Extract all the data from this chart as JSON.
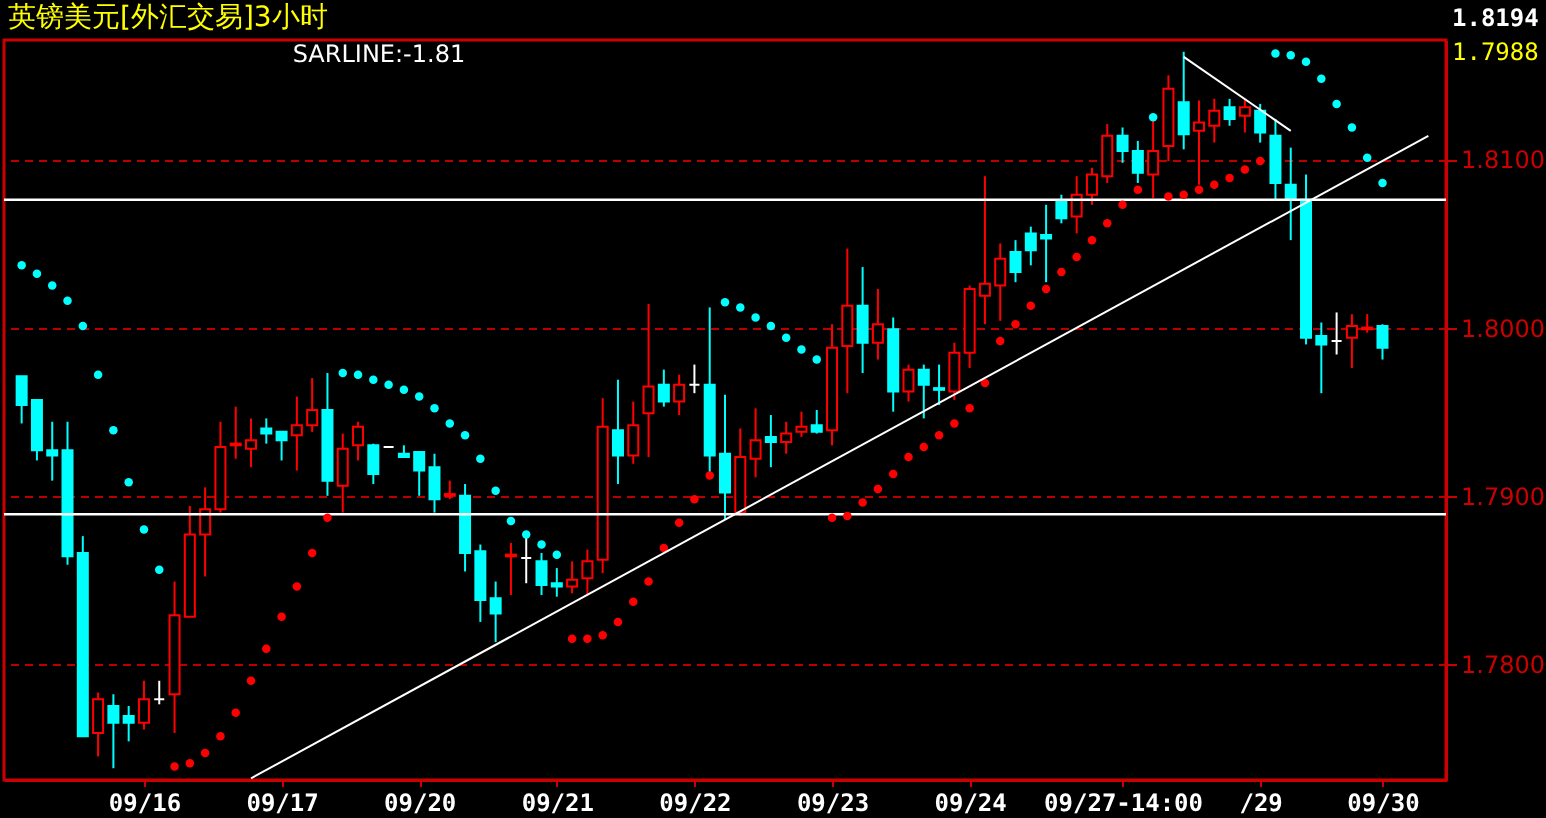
{
  "chart_data": {
    "type": "candlestick",
    "title": "英镑美元[外汇交易]3小时",
    "categories": [
      null,
      null,
      null,
      null,
      null,
      null,
      null,
      null,
      "09/16",
      null,
      null,
      null,
      null,
      null,
      null,
      null,
      null,
      "09/17",
      null,
      null,
      null,
      null,
      null,
      null,
      null,
      null,
      "09/20",
      null,
      null,
      null,
      null,
      null,
      null,
      null,
      null,
      "09/21",
      null,
      null,
      null,
      null,
      null,
      null,
      null,
      null,
      "09/22",
      null,
      null,
      null,
      null,
      null,
      null,
      null,
      null,
      "09/23",
      null,
      null,
      null,
      null,
      null,
      null,
      null,
      null,
      "09/24",
      null,
      null,
      null,
      null,
      null,
      null,
      null,
      null,
      null,
      "09/27-14:00",
      null,
      null,
      null,
      null,
      null,
      null,
      null,
      null,
      "/29",
      null,
      null,
      null,
      null,
      null,
      null,
      null,
      "09/30",
      null,
      null,
      null
    ],
    "ohlc": [
      [
        1.7971,
        1.7971,
        1.7943,
        1.7954
      ],
      [
        1.7957,
        1.7957,
        1.7921,
        1.7927
      ],
      [
        1.7927,
        1.7944,
        1.7909,
        1.7924
      ],
      [
        1.7927,
        1.7944,
        1.7859,
        1.7864
      ],
      [
        1.7866,
        1.7876,
        1.7757,
        1.7757
      ],
      [
        1.7759,
        1.7783,
        1.7745,
        1.7779
      ],
      [
        1.7775,
        1.7782,
        1.7738,
        1.7765
      ],
      [
        1.7769,
        1.7775,
        1.7754,
        1.7765
      ],
      [
        1.7765,
        1.779,
        1.7761,
        1.7779
      ],
      [
        1.7779,
        1.779,
        1.7776,
        1.7779
      ],
      [
        1.7782,
        1.7849,
        1.7759,
        1.7829
      ],
      [
        1.7828,
        1.7894,
        1.7828,
        1.7877
      ],
      [
        1.7877,
        1.7905,
        1.7852,
        1.7892
      ],
      [
        1.7892,
        1.7944,
        1.789,
        1.7929
      ],
      [
        1.793,
        1.7953,
        1.7922,
        1.7931
      ],
      [
        1.7928,
        1.7946,
        1.7917,
        1.7933
      ],
      [
        1.794,
        1.7946,
        1.7931,
        1.7937
      ],
      [
        1.7938,
        1.7938,
        1.7921,
        1.7933
      ],
      [
        1.7936,
        1.7959,
        1.7915,
        1.7942
      ],
      [
        1.7942,
        1.797,
        1.7938,
        1.7951
      ],
      [
        1.7951,
        1.7973,
        1.79,
        1.7909
      ],
      [
        1.7906,
        1.7937,
        1.789,
        1.7928
      ],
      [
        1.793,
        1.7944,
        1.7921,
        1.7941
      ],
      [
        1.793,
        1.7931,
        1.7907,
        1.7913
      ],
      [
        1.7929,
        1.7929,
        1.7929,
        1.7929
      ],
      [
        1.7925,
        1.793,
        1.7923,
        1.7923
      ],
      [
        1.7926,
        1.7926,
        1.79,
        1.7915
      ],
      [
        1.7917,
        1.7925,
        1.789,
        1.7898
      ],
      [
        1.79,
        1.7909,
        1.7898,
        1.7901
      ],
      [
        1.79,
        1.7907,
        1.7855,
        1.7866
      ],
      [
        1.7867,
        1.7871,
        1.7825,
        1.7838
      ],
      [
        1.7839,
        1.7849,
        1.7813,
        1.783
      ],
      [
        1.7864,
        1.7872,
        1.7841,
        1.7865
      ],
      [
        1.7863,
        1.7878,
        1.7848,
        1.7863
      ],
      [
        1.7861,
        1.7866,
        1.7841,
        1.7847
      ],
      [
        1.7848,
        1.7857,
        1.784,
        1.7846
      ],
      [
        1.7846,
        1.7861,
        1.7842,
        1.785
      ],
      [
        1.7851,
        1.7868,
        1.7841,
        1.7861
      ],
      [
        1.7862,
        1.7958,
        1.7854,
        1.7941
      ],
      [
        1.7939,
        1.7969,
        1.7907,
        1.7924
      ],
      [
        1.7924,
        1.7956,
        1.7919,
        1.7942
      ],
      [
        1.7949,
        1.8014,
        1.7923,
        1.7965
      ],
      [
        1.7966,
        1.7975,
        1.7953,
        1.7956
      ],
      [
        1.7956,
        1.7972,
        1.7948,
        1.7966
      ],
      [
        1.7966,
        1.7978,
        1.7961,
        1.7966
      ],
      [
        1.7966,
        1.8012,
        1.7913,
        1.7924
      ],
      [
        1.7925,
        1.796,
        1.7886,
        1.7902
      ],
      [
        1.789,
        1.794,
        1.7888,
        1.7923
      ],
      [
        1.7922,
        1.7952,
        1.7911,
        1.7933
      ],
      [
        1.7935,
        1.7948,
        1.7917,
        1.7932
      ],
      [
        1.7932,
        1.7944,
        1.7925,
        1.7937
      ],
      [
        1.7938,
        1.795,
        1.7935,
        1.7941
      ],
      [
        1.7942,
        1.7951,
        1.7937,
        1.7938
      ],
      [
        1.7939,
        1.8002,
        1.793,
        1.7988
      ],
      [
        1.7989,
        1.8047,
        1.7961,
        1.8013
      ],
      [
        1.8013,
        1.8036,
        1.7973,
        1.7991
      ],
      [
        1.7991,
        1.8023,
        1.7981,
        1.8002
      ],
      [
        1.7999,
        1.8006,
        1.795,
        1.7962
      ],
      [
        1.7962,
        1.7978,
        1.7956,
        1.7975
      ],
      [
        1.7975,
        1.7978,
        1.7946,
        1.7966
      ],
      [
        1.7964,
        1.7978,
        1.7954,
        1.7963
      ],
      [
        1.7962,
        1.7991,
        1.7957,
        1.7985
      ],
      [
        1.7985,
        1.8025,
        1.7976,
        1.8023
      ],
      [
        1.8019,
        1.809,
        1.8002,
        1.8026
      ],
      [
        1.8025,
        1.805,
        1.8004,
        1.8041
      ],
      [
        1.8045,
        1.8052,
        1.8027,
        1.8033
      ],
      [
        1.8056,
        1.806,
        1.8037,
        1.8046
      ],
      [
        1.8055,
        1.8073,
        1.8027,
        1.8053
      ],
      [
        1.8075,
        1.8079,
        1.8062,
        1.8065
      ],
      [
        1.8066,
        1.809,
        1.8056,
        1.8079
      ],
      [
        1.8079,
        1.8095,
        1.8073,
        1.8091
      ],
      [
        1.809,
        1.8121,
        1.8086,
        1.8114
      ],
      [
        1.8114,
        1.8119,
        1.8098,
        1.8105
      ],
      [
        1.8105,
        1.8111,
        1.8086,
        1.8092
      ],
      [
        1.8091,
        1.8126,
        1.8077,
        1.8105
      ],
      [
        1.8108,
        1.815,
        1.8099,
        1.8142
      ],
      [
        1.8134,
        1.8164,
        1.8106,
        1.8115
      ],
      [
        1.8117,
        1.8135,
        1.8085,
        1.8122
      ],
      [
        1.812,
        1.8136,
        1.811,
        1.8129
      ],
      [
        1.8131,
        1.8136,
        1.812,
        1.8124
      ],
      [
        1.8126,
        1.8136,
        1.8116,
        1.8131
      ],
      [
        1.8129,
        1.8133,
        1.811,
        1.8116
      ],
      [
        1.8114,
        1.8124,
        1.8076,
        1.8086
      ],
      [
        1.8085,
        1.8107,
        1.8052,
        1.8076
      ],
      [
        1.8076,
        1.8091,
        1.799,
        1.7994
      ],
      [
        1.7995,
        1.8003,
        1.7961,
        1.799
      ],
      [
        1.7992,
        1.8009,
        1.7984,
        1.7992
      ],
      [
        1.7994,
        1.8008,
        1.7976,
        1.8001
      ],
      [
        1.7999,
        1.8008,
        1.7997,
        1.8
      ],
      [
        1.8001,
        1.8002,
        1.7981,
        1.7988
      ],
      null,
      null,
      null
    ],
    "colors": [
      "#00ffff",
      "#00ffff",
      "#00ffff",
      "#00ffff",
      "#00ffff",
      "#ff0000",
      "#00ffff",
      "#00ffff",
      "#ff0000",
      "#ffffff",
      "#ff0000",
      "#ff0000",
      "#ff0000",
      "#ff0000",
      "#ff0000",
      "#ff0000",
      "#00ffff",
      "#00ffff",
      "#ff0000",
      "#ff0000",
      "#00ffff",
      "#ff0000",
      "#ff0000",
      "#00ffff",
      "#ffffff",
      "#00ffff",
      "#00ffff",
      "#00ffff",
      "#ff0000",
      "#00ffff",
      "#00ffff",
      "#00ffff",
      "#ff0000",
      "#ffffff",
      "#00ffff",
      "#00ffff",
      "#ff0000",
      "#ff0000",
      "#ff0000",
      "#00ffff",
      "#ff0000",
      "#ff0000",
      "#00ffff",
      "#ff0000",
      "#ffffff",
      "#00ffff",
      "#00ffff",
      "#ff0000",
      "#ff0000",
      "#00ffff",
      "#ff0000",
      "#ff0000",
      "#00ffff",
      "#ff0000",
      "#ff0000",
      "#00ffff",
      "#ff0000",
      "#00ffff",
      "#ff0000",
      "#00ffff",
      "#00ffff",
      "#ff0000",
      "#ff0000",
      "#ff0000",
      "#ff0000",
      "#00ffff",
      "#00ffff",
      "#00ffff",
      "#00ffff",
      "#ff0000",
      "#ff0000",
      "#ff0000",
      "#00ffff",
      "#00ffff",
      "#ff0000",
      "#ff0000",
      "#00ffff",
      "#ff0000",
      "#ff0000",
      "#00ffff",
      "#ff0000",
      "#00ffff",
      "#00ffff",
      "#00ffff",
      "#00ffff",
      "#00ffff",
      "#ffffff",
      "#ff0000",
      "#ff0000",
      "#00ffff",
      null,
      null,
      null
    ],
    "series": [
      {
        "type": "scatter",
        "color": "#00ffff",
        "values": [
          1.8037,
          1.8032,
          1.8025,
          1.8016,
          1.8001,
          1.7972,
          1.7939,
          1.7908,
          1.788,
          1.7856,
          null,
          null,
          null,
          null,
          null,
          null,
          null,
          null,
          null,
          null,
          null,
          1.7973,
          1.7972,
          1.7969,
          1.7966,
          1.7963,
          1.7959,
          1.7952,
          1.7943,
          1.7936,
          1.7922,
          1.7903,
          1.7885,
          1.7877,
          1.7871,
          1.7865,
          null,
          null,
          null,
          null,
          null,
          null,
          null,
          null,
          null,
          null,
          1.8015,
          1.8012,
          1.8006,
          1.8001,
          1.7994,
          1.7987,
          1.7981,
          null,
          null,
          null,
          null,
          null,
          null,
          null,
          null,
          null,
          null,
          null,
          null,
          null,
          null,
          null,
          null,
          null,
          null,
          null,
          null,
          null,
          1.8125,
          null,
          null,
          null,
          null,
          null,
          null,
          null,
          1.8163,
          1.8162,
          1.8158,
          1.8148,
          1.8133,
          1.8119,
          1.8101,
          1.8086,
          null,
          null,
          null
        ]
      },
      {
        "type": "scatter",
        "color": "#ff0000",
        "values": [
          null,
          null,
          null,
          null,
          null,
          null,
          null,
          null,
          null,
          null,
          1.7739,
          1.7741,
          1.7747,
          1.7757,
          1.7771,
          1.779,
          1.7809,
          1.7828,
          1.7846,
          1.7866,
          1.7887,
          null,
          null,
          null,
          null,
          null,
          null,
          null,
          null,
          null,
          null,
          null,
          null,
          null,
          null,
          null,
          1.7815,
          1.7815,
          1.7817,
          1.7825,
          1.7837,
          1.7849,
          1.7869,
          1.7884,
          1.7898,
          1.7912,
          null,
          null,
          null,
          null,
          null,
          null,
          null,
          1.7887,
          1.7888,
          1.7896,
          1.7904,
          1.7913,
          1.7923,
          1.7929,
          1.7936,
          1.7943,
          1.7952,
          1.7967,
          1.7992,
          1.8002,
          1.8013,
          1.8023,
          1.8033,
          1.8042,
          1.8052,
          1.8062,
          1.8073,
          1.8082,
          null,
          1.8078,
          1.8079,
          1.8082,
          1.8085,
          1.8089,
          1.8094,
          1.8099,
          null,
          null,
          null,
          null,
          null,
          null,
          null,
          null,
          null,
          null,
          null
        ]
      },
      {
        "type": "line",
        "color": "#ffffff",
        "values": [
          null,
          null,
          null,
          null,
          null,
          null,
          null,
          null,
          null,
          null,
          null,
          null,
          null,
          null,
          null,
          1.7732,
          null,
          null,
          null,
          null,
          null,
          null,
          null,
          null,
          null,
          null,
          null,
          null,
          null,
          null,
          null,
          null,
          null,
          null,
          null,
          null,
          null,
          null,
          null,
          null,
          null,
          null,
          null,
          null,
          null,
          null,
          null,
          null,
          null,
          null,
          null,
          null,
          null,
          null,
          null,
          null,
          null,
          null,
          null,
          null,
          null,
          null,
          null,
          null,
          null,
          null,
          null,
          null,
          null,
          null,
          null,
          null,
          null,
          null,
          null,
          null,
          null,
          null,
          null,
          null,
          null,
          null,
          null,
          null,
          null,
          null,
          null,
          null,
          null,
          null,
          null,
          null,
          1.8114
        ]
      },
      {
        "type": "line",
        "color": "#ffffff",
        "values": [
          null,
          null,
          null,
          null,
          null,
          null,
          null,
          null,
          null,
          null,
          null,
          null,
          null,
          null,
          null,
          null,
          null,
          null,
          null,
          null,
          null,
          null,
          null,
          null,
          null,
          null,
          null,
          null,
          null,
          null,
          null,
          null,
          null,
          null,
          null,
          null,
          null,
          null,
          null,
          null,
          null,
          null,
          null,
          null,
          null,
          null,
          null,
          null,
          null,
          null,
          null,
          null,
          null,
          null,
          null,
          null,
          null,
          null,
          null,
          null,
          null,
          null,
          null,
          null,
          null,
          null,
          null,
          null,
          null,
          null,
          null,
          null,
          null,
          null,
          null,
          null,
          1.8161,
          null,
          null,
          null,
          null,
          null,
          null,
          1.8117,
          null,
          null,
          null,
          null,
          null,
          null,
          null,
          null,
          null
        ]
      }
    ],
    "ref_lines": [
      {
        "axis": "y",
        "value": 1.8076,
        "color": "#ffffff"
      },
      {
        "axis": "y",
        "value": 1.7889,
        "color": "#ffffff"
      }
    ],
    "ylim": [
      1.7731,
      1.8171
    ],
    "yticks": [
      {
        "value": 1.78,
        "label": "1.7800"
      },
      {
        "value": 1.79,
        "label": "1.7900"
      },
      {
        "value": 1.8,
        "label": "1.8000"
      },
      {
        "value": 1.81,
        "label": "1.8100"
      }
    ],
    "grid": "y",
    "annotations": [
      "SARLINE:-1.81",
      "1.8194",
      "1.7988"
    ]
  }
}
